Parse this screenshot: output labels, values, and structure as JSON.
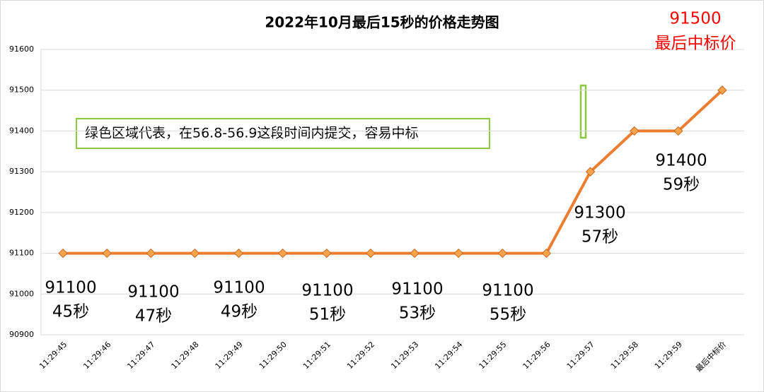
{
  "chart_data": {
    "type": "line",
    "title": "2022年10月最后15秒的价格走势图",
    "categories": [
      "11:29:45",
      "11:29:46",
      "11:29:47",
      "11:29:48",
      "11:29:49",
      "11:29:50",
      "11:29:51",
      "11:29:52",
      "11:29:53",
      "11:29:54",
      "11:29:55",
      "11:29:56",
      "11:29:57",
      "11:29:58",
      "11:29:59",
      "最后中标价"
    ],
    "values": [
      91100,
      91100,
      91100,
      91100,
      91100,
      91100,
      91100,
      91100,
      91100,
      91100,
      91100,
      91100,
      91300,
      91400,
      91400,
      91500
    ],
    "color": "#ed7d31",
    "ylim": [
      90900,
      91600
    ],
    "yticks": [
      90900,
      91000,
      91100,
      91200,
      91300,
      91400,
      91500,
      91600
    ],
    "grid": true,
    "note": "绿色区域代表，在56.8-56.9这段时间内提交，容易中标",
    "highlight": {
      "lines": [
        "91500",
        "最后中标价"
      ],
      "color": "#ff0000"
    },
    "annotations": [
      {
        "lines": [
          "91100",
          "45秒"
        ]
      },
      {
        "lines": [
          "91100",
          "47秒"
        ]
      },
      {
        "lines": [
          "91100",
          "49秒"
        ]
      },
      {
        "lines": [
          "91100",
          "51秒"
        ]
      },
      {
        "lines": [
          "91100",
          "53秒"
        ]
      },
      {
        "lines": [
          "91100",
          "55秒"
        ]
      },
      {
        "lines": [
          "91300",
          "57秒"
        ]
      },
      {
        "lines": [
          "91400",
          "59秒"
        ]
      }
    ]
  }
}
